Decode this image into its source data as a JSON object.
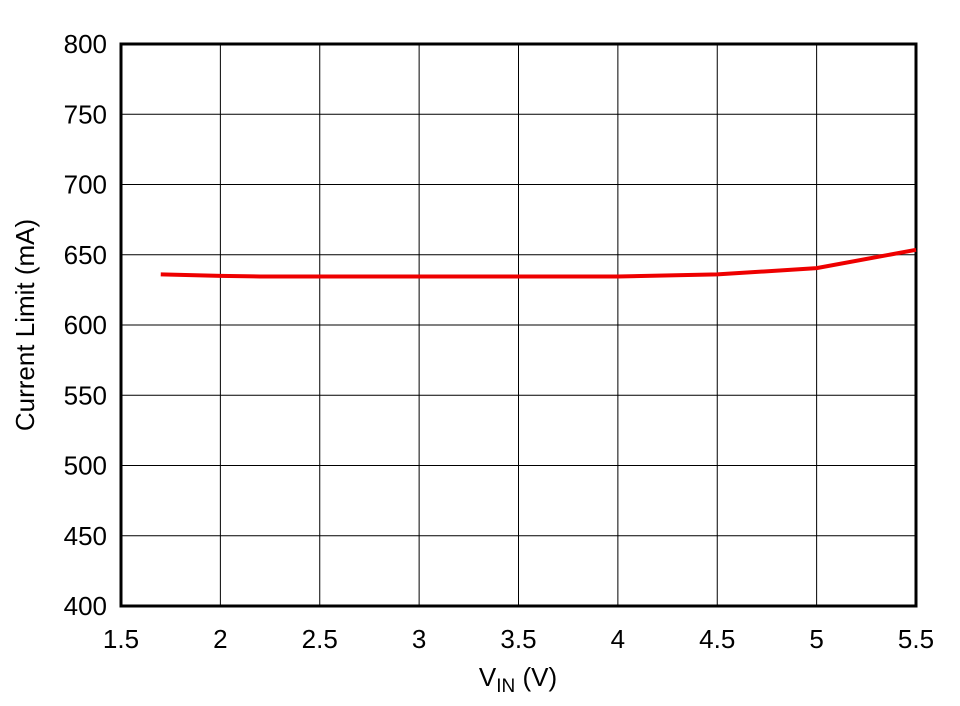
{
  "chart_data": {
    "type": "line",
    "x_label": {
      "text": "V",
      "subscript": "IN",
      "suffix": " (V)"
    },
    "y_label": "Current Limit (mA)",
    "x": [
      1.7,
      2,
      2.2,
      2.5,
      3,
      3.5,
      4,
      4.5,
      5,
      5.5
    ],
    "series": [
      {
        "color": "#ee0000",
        "values": [
          636,
          635,
          634.5,
          634.5,
          634.5,
          634.5,
          634.5,
          636,
          640.5,
          653.5
        ]
      }
    ],
    "xlim": [
      1.5,
      5.5
    ],
    "xticks": [
      1.5,
      2,
      2.5,
      3,
      3.5,
      4,
      4.5,
      5,
      5.5
    ],
    "ylim": [
      400,
      800
    ],
    "yticks": [
      400,
      450,
      500,
      550,
      600,
      650,
      700,
      750,
      800
    ],
    "grid": true
  }
}
